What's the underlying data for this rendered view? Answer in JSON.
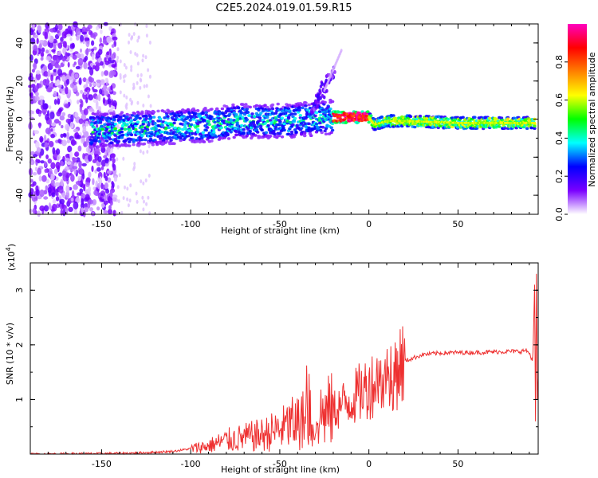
{
  "figure": {
    "title": "C2E5.2024.019.01.59.R15"
  },
  "chart_data": [
    {
      "type": "heatmap",
      "xlabel": "Height of straight line (km)",
      "ylabel": "Frequency (Hz)",
      "xlim": [
        -190,
        95
      ],
      "ylim": [
        -50,
        50
      ],
      "xticks": [
        -150,
        -100,
        -50,
        0,
        50
      ],
      "yticks": [
        -40,
        -20,
        0,
        20,
        40
      ],
      "colorbar": {
        "label": "Normalized spectral amplitude",
        "range": [
          0,
          1
        ],
        "ticks": [
          "0.0",
          "0.2",
          "0.4",
          "0.6",
          "0.8"
        ],
        "tick_values": [
          0,
          0.2,
          0.4,
          0.6,
          0.8
        ],
        "colors": [
          "#ffffff",
          "#7a00ff",
          "#0000ff",
          "#00ffff",
          "#00ff00",
          "#ffff00",
          "#ff8000",
          "#ff0000",
          "#ff00c0"
        ]
      },
      "signal_track": {
        "description_points_x": [
          -155,
          -130,
          -110,
          -90,
          -75,
          -60,
          -45,
          -35,
          -25,
          -20,
          -10,
          0,
          3,
          10,
          20,
          50,
          70,
          92
        ],
        "description_points_y": [
          -6,
          -5,
          -4,
          -3,
          -1,
          -1,
          -1,
          0,
          1,
          1,
          1,
          1,
          -3,
          -1,
          -1,
          -2,
          -2,
          -2
        ],
        "peak_amplitude_x_range": [
          -20,
          0
        ]
      }
    },
    {
      "type": "line",
      "xlabel": "Height of straight line (km)",
      "ylabel": "SNR (10 * v/v)",
      "scale_label": "(x10",
      "scale_exponent": "4",
      "xlim": [
        -190,
        95
      ],
      "ylim": [
        0,
        3.5
      ],
      "xticks": [
        -150,
        -100,
        -50,
        0,
        50
      ],
      "yticks": [
        1,
        2,
        3
      ],
      "series": [
        {
          "color": "#ee3030",
          "x": [
            -190,
            -150,
            -130,
            -110,
            -100,
            -90,
            -80,
            -70,
            -60,
            -50,
            -40,
            -30,
            -20,
            -10,
            0,
            10,
            20,
            30,
            40,
            50,
            60,
            70,
            80,
            85,
            88,
            90,
            92,
            93,
            94,
            95
          ],
          "y": [
            0.0,
            0.01,
            0.02,
            0.05,
            0.1,
            0.15,
            0.25,
            0.3,
            0.35,
            0.45,
            0.6,
            0.7,
            0.8,
            1.0,
            1.25,
            1.45,
            1.7,
            1.82,
            1.85,
            1.86,
            1.86,
            1.87,
            1.88,
            1.88,
            1.9,
            1.85,
            1.7,
            3.1,
            0.7,
            3.3
          ]
        }
      ]
    }
  ]
}
